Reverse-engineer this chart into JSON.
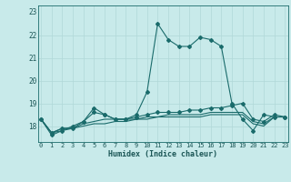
{
  "xlabel": "Humidex (Indice chaleur)",
  "background_color": "#c8eaea",
  "grid_color": "#b0d8d8",
  "line_color": "#1a6b6b",
  "x_values": [
    0,
    1,
    2,
    3,
    4,
    5,
    6,
    7,
    8,
    9,
    10,
    11,
    12,
    13,
    14,
    15,
    16,
    17,
    18,
    19,
    20,
    21,
    22,
    23
  ],
  "series": [
    [
      18.3,
      17.6,
      17.8,
      18.0,
      18.2,
      18.8,
      18.5,
      18.3,
      18.3,
      18.5,
      19.5,
      22.5,
      21.8,
      21.5,
      21.5,
      21.9,
      21.8,
      21.5,
      19.0,
      18.3,
      17.8,
      18.5,
      18.4,
      18.4
    ],
    [
      18.3,
      17.7,
      17.9,
      17.9,
      18.2,
      18.6,
      18.5,
      18.3,
      18.3,
      18.4,
      18.5,
      18.6,
      18.6,
      18.6,
      18.7,
      18.7,
      18.8,
      18.8,
      18.9,
      19.0,
      18.3,
      18.2,
      18.5,
      18.4
    ],
    [
      18.3,
      17.7,
      17.9,
      17.9,
      18.1,
      18.2,
      18.3,
      18.3,
      18.3,
      18.3,
      18.4,
      18.4,
      18.5,
      18.5,
      18.5,
      18.5,
      18.6,
      18.6,
      18.6,
      18.6,
      18.2,
      18.1,
      18.4,
      18.4
    ],
    [
      18.3,
      17.7,
      17.8,
      17.9,
      18.0,
      18.1,
      18.1,
      18.2,
      18.2,
      18.3,
      18.3,
      18.4,
      18.4,
      18.4,
      18.4,
      18.4,
      18.5,
      18.5,
      18.5,
      18.5,
      18.1,
      18.0,
      18.4,
      18.4
    ]
  ],
  "ylim_min": 17.3,
  "ylim_max": 23.3,
  "ytick_top": 23,
  "yticks": [
    18,
    19,
    20,
    21,
    22
  ],
  "xticks": [
    0,
    1,
    2,
    3,
    4,
    5,
    6,
    7,
    8,
    9,
    10,
    11,
    12,
    13,
    14,
    15,
    16,
    17,
    18,
    19,
    20,
    21,
    22,
    23
  ],
  "xlim_min": -0.3,
  "xlim_max": 23.3
}
